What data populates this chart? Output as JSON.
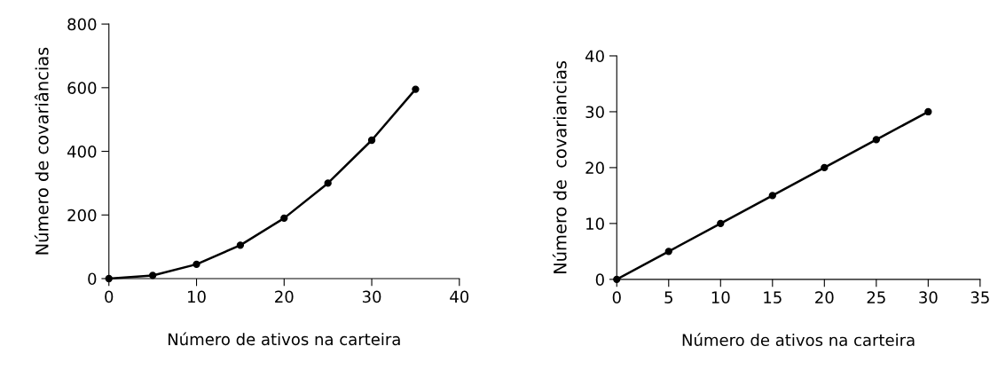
{
  "chart_data": [
    {
      "type": "line",
      "xlabel": "Número de ativos na carteira",
      "ylabel": "Número de covariâncias",
      "x": [
        0,
        5,
        10,
        15,
        20,
        25,
        30,
        35
      ],
      "series": [
        {
          "color": "#000000",
          "values": [
            0,
            10,
            45,
            105,
            190,
            300,
            435,
            595
          ]
        }
      ],
      "xlim": [
        0,
        40
      ],
      "xticks": [
        0,
        10,
        20,
        30,
        40
      ],
      "ylim": [
        0,
        800
      ],
      "yticks": [
        0,
        200,
        400,
        600,
        800
      ],
      "grid": false,
      "marker": "circle",
      "line_style": "solid"
    },
    {
      "type": "line",
      "xlabel": "Número de ativos na carteira",
      "ylabel": "Número de  covariancias",
      "x": [
        0,
        5,
        10,
        15,
        20,
        25,
        30
      ],
      "series": [
        {
          "color": "#000000",
          "values": [
            0,
            5,
            10,
            15,
            20,
            25,
            30
          ]
        }
      ],
      "xlim": [
        0,
        35
      ],
      "xticks": [
        0,
        5,
        10,
        15,
        20,
        25,
        30,
        35
      ],
      "ylim": [
        0,
        40
      ],
      "yticks": [
        0,
        10,
        20,
        30,
        40
      ],
      "grid": false,
      "marker": "circle",
      "line_style": "solid"
    }
  ]
}
